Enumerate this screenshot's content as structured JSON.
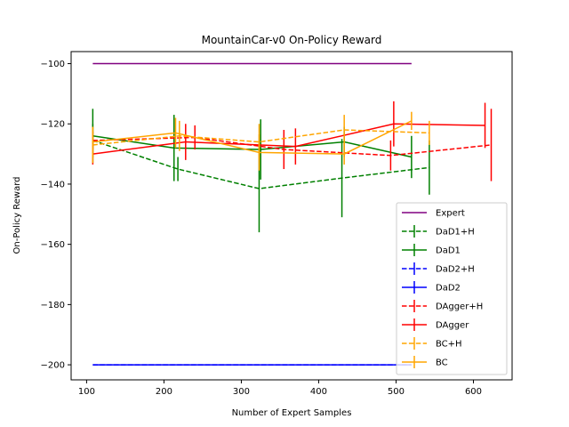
{
  "chart_data": {
    "type": "line",
    "title": "MountainCar-v0 On-Policy Reward",
    "xlabel": "Number of Expert Samples",
    "ylabel": "On-Policy Reward",
    "xlim": [
      80,
      650
    ],
    "ylim": [
      -205,
      -96
    ],
    "xticks": [
      100,
      200,
      300,
      400,
      500,
      600
    ],
    "yticks": [
      -200,
      -180,
      -160,
      -140,
      -120,
      -100
    ],
    "grid": false,
    "legend_position": "lower-right",
    "series": [
      {
        "name": "Expert",
        "color": "#800080",
        "style": "solid",
        "errorbars": false,
        "points": [
          {
            "x": 108,
            "y": -100
          },
          {
            "x": 520,
            "y": -100
          }
        ]
      },
      {
        "name": "DaD1+H",
        "color": "#008000",
        "style": "dashed",
        "errorbars": true,
        "points": [
          {
            "x": 108,
            "y": -125.5,
            "err": 5.5
          },
          {
            "x": 218,
            "y": -135.0,
            "err": 4.0
          },
          {
            "x": 323,
            "y": -141.5,
            "err": 14.5
          },
          {
            "x": 430,
            "y": -138.0,
            "err": 13.0
          },
          {
            "x": 543,
            "y": -134.5,
            "err": 9.0
          }
        ]
      },
      {
        "name": "DaD1",
        "color": "#008000",
        "style": "solid",
        "errorbars": true,
        "points": [
          {
            "x": 108,
            "y": -124.0,
            "err": 9.0
          },
          {
            "x": 213,
            "y": -128.0,
            "err": 11.0
          },
          {
            "x": 325,
            "y": -128.5,
            "err": 10.0
          },
          {
            "x": 433,
            "y": -126.0,
            "err": 5.0
          },
          {
            "x": 520,
            "y": -131.0,
            "err": 7.0
          }
        ]
      },
      {
        "name": "DaD2+H",
        "color": "#0000ff",
        "style": "dashed",
        "errorbars": true,
        "points": [
          {
            "x": 108,
            "y": -200
          },
          {
            "x": 520,
            "y": -200
          }
        ]
      },
      {
        "name": "DaD2",
        "color": "#0000ff",
        "style": "solid",
        "errorbars": true,
        "points": [
          {
            "x": 108,
            "y": -200
          },
          {
            "x": 520,
            "y": -200
          }
        ]
      },
      {
        "name": "DAgger+H",
        "color": "#ff0000",
        "style": "dashed",
        "errorbars": true,
        "points": [
          {
            "x": 108,
            "y": -125.5,
            "err": 3.0
          },
          {
            "x": 240,
            "y": -124.5,
            "err": 4.0
          },
          {
            "x": 355,
            "y": -128.5,
            "err": 6.5
          },
          {
            "x": 493,
            "y": -130.5,
            "err": 5.0
          },
          {
            "x": 623,
            "y": -127.0,
            "err": 12.0
          }
        ]
      },
      {
        "name": "DAgger",
        "color": "#ff0000",
        "style": "solid",
        "errorbars": true,
        "points": [
          {
            "x": 108,
            "y": -130.0,
            "err": 3.5
          },
          {
            "x": 228,
            "y": -126.0,
            "err": 6.0
          },
          {
            "x": 370,
            "y": -127.5,
            "err": 6.0
          },
          {
            "x": 497,
            "y": -120.0,
            "err": 7.5
          },
          {
            "x": 615,
            "y": -120.5,
            "err": 7.5
          }
        ]
      },
      {
        "name": "BC+H",
        "color": "#ffa500",
        "style": "dashed",
        "errorbars": true,
        "points": [
          {
            "x": 108,
            "y": -127.0,
            "err": 6.0
          },
          {
            "x": 220,
            "y": -124.0,
            "err": 5.0
          },
          {
            "x": 323,
            "y": -126.0,
            "err": 6.0
          },
          {
            "x": 433,
            "y": -122.0,
            "err": 5.0
          },
          {
            "x": 543,
            "y": -123.0,
            "err": 4.0
          }
        ]
      },
      {
        "name": "BC",
        "color": "#ffa500",
        "style": "solid",
        "errorbars": true,
        "points": [
          {
            "x": 108,
            "y": -126.0,
            "err": 5.0
          },
          {
            "x": 215,
            "y": -123.0,
            "err": 5.0
          },
          {
            "x": 323,
            "y": -129.5,
            "err": 6.0
          },
          {
            "x": 433,
            "y": -130.0,
            "err": 3.5
          },
          {
            "x": 520,
            "y": -119.0,
            "err": 3.0
          }
        ]
      }
    ]
  }
}
